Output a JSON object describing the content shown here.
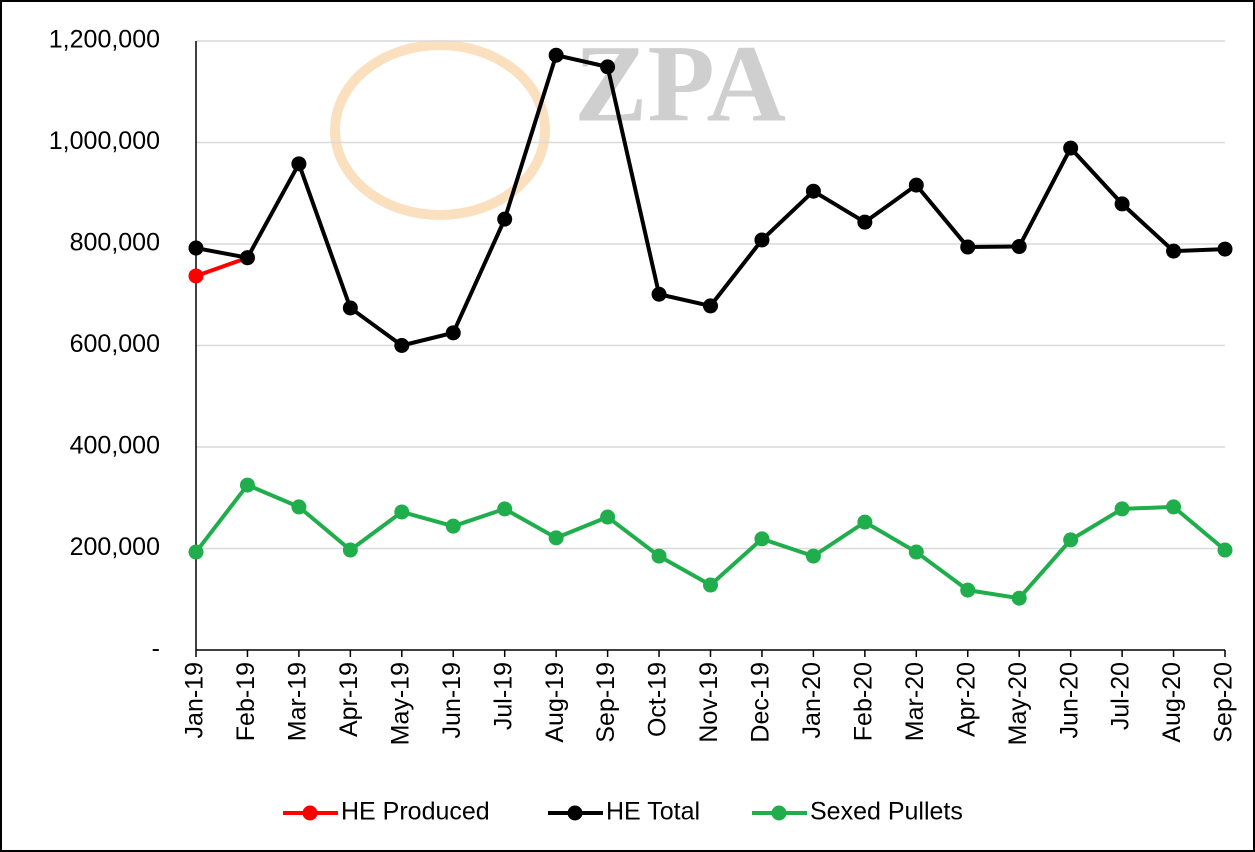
{
  "chart_data": {
    "type": "line",
    "watermark": "ZPA",
    "categories": [
      "Jan-19",
      "Feb-19",
      "Mar-19",
      "Apr-19",
      "May-19",
      "Jun-19",
      "Jul-19",
      "Aug-19",
      "Sep-19",
      "Oct-19",
      "Nov-19",
      "Dec-19",
      "Jan-20",
      "Feb-20",
      "Mar-20",
      "Apr-20",
      "May-20",
      "Jun-20",
      "Jul-20",
      "Aug-20",
      "Sep-20"
    ],
    "series": [
      {
        "name": "HE Produced",
        "color": "#ff0000",
        "values": [
          737000,
          773000,
          null,
          null,
          null,
          null,
          null,
          null,
          null,
          null,
          null,
          null,
          null,
          null,
          null,
          null,
          null,
          null,
          null,
          null,
          null
        ]
      },
      {
        "name": "HE Total",
        "color": "#000000",
        "values": [
          792000,
          773000,
          958000,
          674000,
          600000,
          625000,
          849000,
          1172000,
          1149000,
          701000,
          678000,
          808000,
          904000,
          843000,
          916000,
          794000,
          795000,
          989000,
          879000,
          786000,
          790000
        ]
      },
      {
        "name": "Sexed Pullets",
        "color": "#1fae4b",
        "values": [
          193000,
          325000,
          282000,
          197000,
          272000,
          244000,
          278000,
          221000,
          262000,
          185000,
          128000,
          219000,
          185000,
          252000,
          193000,
          118000,
          102000,
          217000,
          278000,
          282000,
          197000
        ]
      }
    ],
    "ylim": [
      0,
      1200000
    ],
    "yticks": [
      {
        "value": 0,
        "label": "-"
      },
      {
        "value": 200000,
        "label": "200,000"
      },
      {
        "value": 400000,
        "label": "400,000"
      },
      {
        "value": 600000,
        "label": "600,000"
      },
      {
        "value": 800000,
        "label": "800,000"
      },
      {
        "value": 1000000,
        "label": "1,000,000"
      },
      {
        "value": 1200000,
        "label": "1,200,000"
      }
    ],
    "grid": true,
    "legend": "bottom"
  }
}
